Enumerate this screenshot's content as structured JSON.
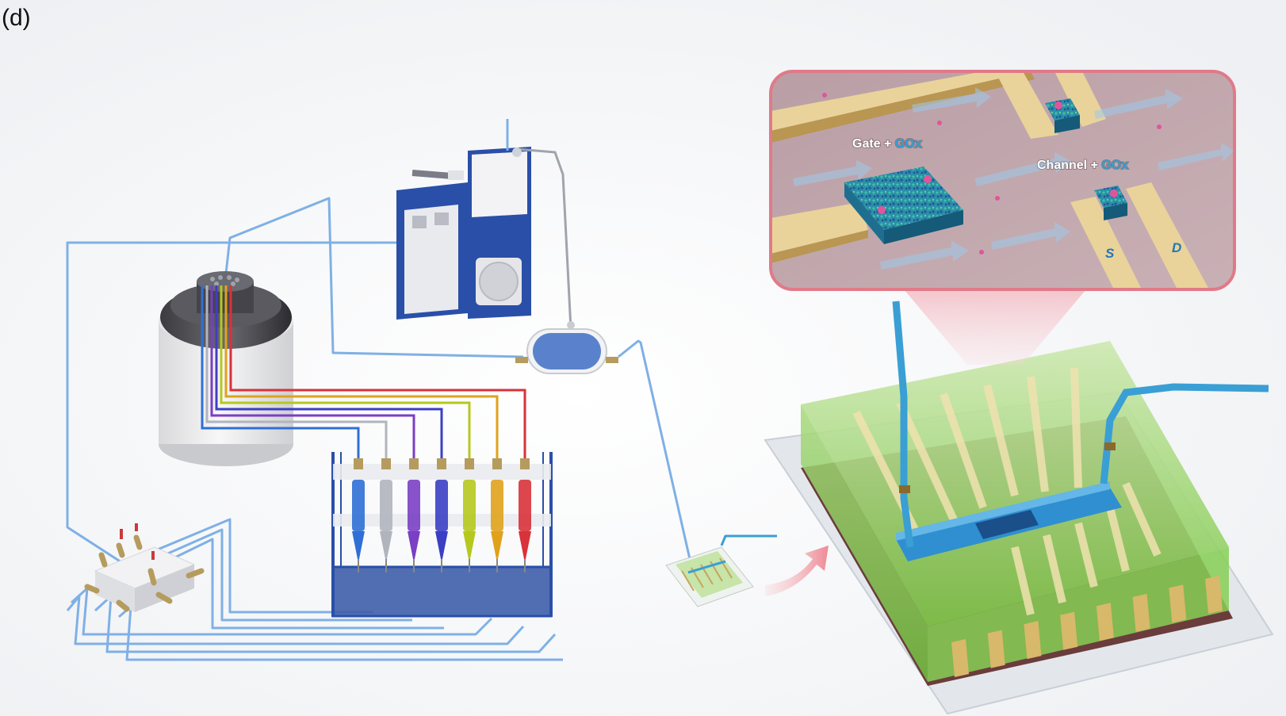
{
  "panel_label": "(d)",
  "zoom_inset": {
    "gate_label_prefix": "Gate + ",
    "gate_label_accent": "GOx",
    "channel_label_prefix": "Channel + ",
    "channel_label_accent": "GOx",
    "source_label": "S",
    "drain_label": "D"
  },
  "syringe_colors": [
    "#2f6fd6",
    "#b0b4bd",
    "#7a3fc4",
    "#3b3fc4",
    "#b6c81e",
    "#e0a21c",
    "#d8323a"
  ],
  "colors": {
    "tubing_blue": "#7fb0e6",
    "frame_blue": "#2a4fa8",
    "device_green": "#9fd67a",
    "gold": "#d8b86a",
    "inset_border": "#e07a88"
  }
}
